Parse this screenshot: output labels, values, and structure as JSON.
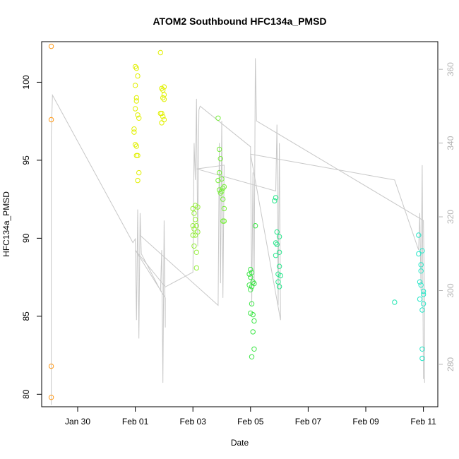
{
  "chart_data": {
    "type": "scatter",
    "title": "ATOM2 Southbound HFC134a_PMSD",
    "xlabel": "Date",
    "ylabel": "HFC134a_PMSD",
    "x_ticks": [
      "Jan 30",
      "Feb 01",
      "Feb 03",
      "Feb 05",
      "Feb 07",
      "Feb 09",
      "Feb 11"
    ],
    "y_ticks": [
      80,
      85,
      90,
      95,
      100
    ],
    "y2_ticks": [
      280,
      300,
      320,
      340,
      360
    ],
    "xlim": [
      "2017-01-28T18:00",
      "2017-02-11T12:00"
    ],
    "ylim": [
      79.2,
      102.6
    ],
    "y2lim": [
      268.5,
      367.5
    ],
    "colors": {
      "line": "#c8c8c8",
      "right_axis": "#b4b4b4"
    },
    "scatter": [
      {
        "x": "2017-01-29T02:00",
        "y": 102.3,
        "color": "#ff9a1a"
      },
      {
        "x": "2017-01-29T02:00",
        "y": 97.6,
        "color": "#ff9a1a"
      },
      {
        "x": "2017-01-29T02:00",
        "y": 81.8,
        "color": "#ff9a1a"
      },
      {
        "x": "2017-01-29T02:00",
        "y": 79.8,
        "color": "#ff9a1a"
      },
      {
        "x": "2017-02-01T00:00",
        "y": 101.0,
        "color": "#e1f000"
      },
      {
        "x": "2017-02-01T01:00",
        "y": 100.9,
        "color": "#e1f000"
      },
      {
        "x": "2017-02-01T02:00",
        "y": 100.4,
        "color": "#e1f000"
      },
      {
        "x": "2017-02-01T00:00",
        "y": 99.8,
        "color": "#e1f000"
      },
      {
        "x": "2017-02-01T01:00",
        "y": 99.0,
        "color": "#e1f000"
      },
      {
        "x": "2017-02-01T01:00",
        "y": 98.8,
        "color": "#e1f000"
      },
      {
        "x": "2017-02-01T00:00",
        "y": 98.3,
        "color": "#e1f000"
      },
      {
        "x": "2017-02-01T02:00",
        "y": 97.9,
        "color": "#e1f000"
      },
      {
        "x": "2017-02-01T03:00",
        "y": 97.7,
        "color": "#e1f000"
      },
      {
        "x": "2017-01-31T23:00",
        "y": 97.0,
        "color": "#e1f000"
      },
      {
        "x": "2017-01-31T23:00",
        "y": 96.8,
        "color": "#e1f000"
      },
      {
        "x": "2017-02-01T00:00",
        "y": 96.0,
        "color": "#e1f000"
      },
      {
        "x": "2017-02-01T01:00",
        "y": 95.9,
        "color": "#e1f000"
      },
      {
        "x": "2017-02-01T01:00",
        "y": 95.3,
        "color": "#e1f000"
      },
      {
        "x": "2017-02-01T02:00",
        "y": 95.3,
        "color": "#e1f000"
      },
      {
        "x": "2017-02-01T03:00",
        "y": 94.2,
        "color": "#e1f000"
      },
      {
        "x": "2017-02-01T02:00",
        "y": 93.7,
        "color": "#e1f000"
      },
      {
        "x": "2017-02-01T21:00",
        "y": 101.9,
        "color": "#e1f000"
      },
      {
        "x": "2017-02-02T00:00",
        "y": 99.7,
        "color": "#e1f000"
      },
      {
        "x": "2017-02-01T22:00",
        "y": 99.6,
        "color": "#e1f000"
      },
      {
        "x": "2017-02-01T23:00",
        "y": 99.5,
        "color": "#e1f000"
      },
      {
        "x": "2017-02-02T00:00",
        "y": 99.2,
        "color": "#e1f000"
      },
      {
        "x": "2017-02-01T23:00",
        "y": 99.0,
        "color": "#e1f000"
      },
      {
        "x": "2017-02-02T00:00",
        "y": 98.9,
        "color": "#e1f000"
      },
      {
        "x": "2017-02-01T21:00",
        "y": 98.0,
        "color": "#e1f000"
      },
      {
        "x": "2017-02-01T22:00",
        "y": 98.0,
        "color": "#e1f000"
      },
      {
        "x": "2017-02-01T23:00",
        "y": 97.8,
        "color": "#e1f000"
      },
      {
        "x": "2017-02-02T00:00",
        "y": 97.6,
        "color": "#e1f000"
      },
      {
        "x": "2017-02-01T22:00",
        "y": 97.4,
        "color": "#e1f000"
      },
      {
        "x": "2017-02-03T02:00",
        "y": 92.1,
        "color": "#96ee3c"
      },
      {
        "x": "2017-02-03T04:00",
        "y": 92.0,
        "color": "#96ee3c"
      },
      {
        "x": "2017-02-03T00:00",
        "y": 91.9,
        "color": "#96ee3c"
      },
      {
        "x": "2017-02-03T01:00",
        "y": 91.6,
        "color": "#96ee3c"
      },
      {
        "x": "2017-02-03T02:00",
        "y": 91.2,
        "color": "#96ee3c"
      },
      {
        "x": "2017-02-03T00:00",
        "y": 90.8,
        "color": "#96ee3c"
      },
      {
        "x": "2017-02-03T03:00",
        "y": 90.8,
        "color": "#96ee3c"
      },
      {
        "x": "2017-02-03T01:00",
        "y": 90.6,
        "color": "#96ee3c"
      },
      {
        "x": "2017-02-03T04:00",
        "y": 90.4,
        "color": "#96ee3c"
      },
      {
        "x": "2017-02-03T02:00",
        "y": 90.2,
        "color": "#96ee3c"
      },
      {
        "x": "2017-02-03T00:00",
        "y": 90.2,
        "color": "#96ee3c"
      },
      {
        "x": "2017-02-03T01:00",
        "y": 89.5,
        "color": "#96ee3c"
      },
      {
        "x": "2017-02-03T03:00",
        "y": 89.1,
        "color": "#96ee3c"
      },
      {
        "x": "2017-02-03T03:00",
        "y": 88.1,
        "color": "#96ee3c"
      },
      {
        "x": "2017-02-03T21:00",
        "y": 97.7,
        "color": "#78ee3c"
      },
      {
        "x": "2017-02-03T22:00",
        "y": 95.7,
        "color": "#78ee3c"
      },
      {
        "x": "2017-02-03T23:00",
        "y": 95.1,
        "color": "#78ee3c"
      },
      {
        "x": "2017-02-03T22:00",
        "y": 94.2,
        "color": "#78ee3c"
      },
      {
        "x": "2017-02-04T00:00",
        "y": 93.8,
        "color": "#78ee3c"
      },
      {
        "x": "2017-02-03T21:00",
        "y": 93.7,
        "color": "#78ee3c"
      },
      {
        "x": "2017-02-04T02:00",
        "y": 93.3,
        "color": "#78ee3c"
      },
      {
        "x": "2017-02-04T01:00",
        "y": 93.2,
        "color": "#78ee3c"
      },
      {
        "x": "2017-02-03T22:00",
        "y": 93.1,
        "color": "#78ee3c"
      },
      {
        "x": "2017-02-04T00:00",
        "y": 93.0,
        "color": "#78ee3c"
      },
      {
        "x": "2017-02-03T23:00",
        "y": 92.9,
        "color": "#78ee3c"
      },
      {
        "x": "2017-02-04T01:00",
        "y": 92.5,
        "color": "#78ee3c"
      },
      {
        "x": "2017-02-04T02:00",
        "y": 91.9,
        "color": "#78ee3c"
      },
      {
        "x": "2017-02-04T01:00",
        "y": 91.1,
        "color": "#78ee3c"
      },
      {
        "x": "2017-02-04T02:00",
        "y": 91.1,
        "color": "#78ee3c"
      },
      {
        "x": "2017-02-05T04:00",
        "y": 90.8,
        "color": "#3ce646"
      },
      {
        "x": "2017-02-05T00:00",
        "y": 88.0,
        "color": "#3ce646"
      },
      {
        "x": "2017-02-04T23:00",
        "y": 87.7,
        "color": "#3ce646"
      },
      {
        "x": "2017-02-05T01:00",
        "y": 87.8,
        "color": "#3ce646"
      },
      {
        "x": "2017-02-05T00:00",
        "y": 87.5,
        "color": "#3ce646"
      },
      {
        "x": "2017-02-05T02:00",
        "y": 87.2,
        "color": "#3ce646"
      },
      {
        "x": "2017-02-04T23:00",
        "y": 87.0,
        "color": "#3ce646"
      },
      {
        "x": "2017-02-05T03:00",
        "y": 87.1,
        "color": "#3ce646"
      },
      {
        "x": "2017-02-05T01:00",
        "y": 86.9,
        "color": "#3ce646"
      },
      {
        "x": "2017-02-05T00:00",
        "y": 86.7,
        "color": "#3ce646"
      },
      {
        "x": "2017-02-05T01:00",
        "y": 85.8,
        "color": "#3ce646"
      },
      {
        "x": "2017-02-05T00:00",
        "y": 85.2,
        "color": "#3ce646"
      },
      {
        "x": "2017-02-05T02:00",
        "y": 85.1,
        "color": "#3ce646"
      },
      {
        "x": "2017-02-05T03:00",
        "y": 84.7,
        "color": "#3ce646"
      },
      {
        "x": "2017-02-05T02:00",
        "y": 84.0,
        "color": "#3ce646"
      },
      {
        "x": "2017-02-05T03:00",
        "y": 82.9,
        "color": "#3ce646"
      },
      {
        "x": "2017-02-05T01:00",
        "y": 82.4,
        "color": "#3ce646"
      },
      {
        "x": "2017-02-05T21:00",
        "y": 92.6,
        "color": "#28e68c"
      },
      {
        "x": "2017-02-05T20:00",
        "y": 92.4,
        "color": "#28e68c"
      },
      {
        "x": "2017-02-05T22:00",
        "y": 90.4,
        "color": "#28e68c"
      },
      {
        "x": "2017-02-06T00:00",
        "y": 90.1,
        "color": "#28e68c"
      },
      {
        "x": "2017-02-05T21:00",
        "y": 89.7,
        "color": "#28e68c"
      },
      {
        "x": "2017-02-05T22:00",
        "y": 89.6,
        "color": "#28e68c"
      },
      {
        "x": "2017-02-06T00:00",
        "y": 89.1,
        "color": "#28e68c"
      },
      {
        "x": "2017-02-05T21:00",
        "y": 88.9,
        "color": "#28e68c"
      },
      {
        "x": "2017-02-06T00:00",
        "y": 88.2,
        "color": "#28e68c"
      },
      {
        "x": "2017-02-05T23:00",
        "y": 87.7,
        "color": "#28e68c"
      },
      {
        "x": "2017-02-06T01:00",
        "y": 87.6,
        "color": "#28e68c"
      },
      {
        "x": "2017-02-05T23:00",
        "y": 87.2,
        "color": "#28e68c"
      },
      {
        "x": "2017-02-06T00:00",
        "y": 86.9,
        "color": "#28e68c"
      },
      {
        "x": "2017-02-10T00:00",
        "y": 85.9,
        "color": "#28e6b4"
      },
      {
        "x": "2017-02-10T20:00",
        "y": 90.2,
        "color": "#28e6c8"
      },
      {
        "x": "2017-02-10T23:00",
        "y": 89.2,
        "color": "#28e6c8"
      },
      {
        "x": "2017-02-10T20:00",
        "y": 89.0,
        "color": "#28e6c8"
      },
      {
        "x": "2017-02-10T22:00",
        "y": 88.3,
        "color": "#28e6c8"
      },
      {
        "x": "2017-02-10T22:00",
        "y": 87.9,
        "color": "#28e6c8"
      },
      {
        "x": "2017-02-10T21:00",
        "y": 87.2,
        "color": "#28e6c8"
      },
      {
        "x": "2017-02-10T22:00",
        "y": 87.0,
        "color": "#28e6c8"
      },
      {
        "x": "2017-02-11T00:00",
        "y": 86.6,
        "color": "#28e6c8"
      },
      {
        "x": "2017-02-11T00:00",
        "y": 86.4,
        "color": "#28e6c8"
      },
      {
        "x": "2017-02-10T21:00",
        "y": 86.1,
        "color": "#28e6c8"
      },
      {
        "x": "2017-02-11T00:00",
        "y": 85.8,
        "color": "#28e6c8"
      },
      {
        "x": "2017-02-10T23:00",
        "y": 85.4,
        "color": "#28e6c8"
      },
      {
        "x": "2017-02-10T23:00",
        "y": 82.9,
        "color": "#28e6c8"
      },
      {
        "x": "2017-02-10T23:00",
        "y": 82.3,
        "color": "#28e6c8"
      }
    ],
    "line": [
      {
        "x": "2017-01-29T02:00",
        "y": 269
      },
      {
        "x": "2017-01-29T02:00",
        "y": 342
      },
      {
        "x": "2017-01-29T03:00",
        "y": 353
      },
      {
        "x": "2017-01-31T22:00",
        "y": 313
      },
      {
        "x": "2017-02-01T00:00",
        "y": 314
      },
      {
        "x": "2017-02-01T01:00",
        "y": 292
      },
      {
        "x": "2017-02-01T02:00",
        "y": 322
      },
      {
        "x": "2017-02-01T03:00",
        "y": 287
      },
      {
        "x": "2017-02-01T04:00",
        "y": 321
      },
      {
        "x": "2017-02-01T05:00",
        "y": 310
      },
      {
        "x": "2017-02-01T21:00",
        "y": 300
      },
      {
        "x": "2017-02-01T22:00",
        "y": 311
      },
      {
        "x": "2017-02-01T23:00",
        "y": 275
      },
      {
        "x": "2017-02-02T00:00",
        "y": 319
      },
      {
        "x": "2017-02-02T01:00",
        "y": 290
      },
      {
        "x": "2017-02-02T01:00",
        "y": 298
      },
      {
        "x": "2017-02-01T00:00",
        "y": 311
      },
      {
        "x": "2017-02-02T01:00",
        "y": 301
      },
      {
        "x": "2017-02-03T00:00",
        "y": 305
      },
      {
        "x": "2017-02-03T01:00",
        "y": 340
      },
      {
        "x": "2017-02-03T02:00",
        "y": 330
      },
      {
        "x": "2017-02-03T03:00",
        "y": 352
      },
      {
        "x": "2017-02-03T04:00",
        "y": 312
      },
      {
        "x": "2017-02-03T05:00",
        "y": 349
      },
      {
        "x": "2017-02-03T06:00",
        "y": 350
      },
      {
        "x": "2017-02-05T00:00",
        "y": 339
      },
      {
        "x": "2017-02-05T01:00",
        "y": 296
      },
      {
        "x": "2017-02-05T02:00",
        "y": 332
      },
      {
        "x": "2017-02-05T03:00",
        "y": 301
      },
      {
        "x": "2017-02-05T04:00",
        "y": 363
      },
      {
        "x": "2017-02-05T05:00",
        "y": 346
      },
      {
        "x": "2017-02-11T00:00",
        "y": 319
      },
      {
        "x": "2017-02-11T01:00",
        "y": 298
      },
      {
        "x": "2017-02-11T01:00",
        "y": 275
      }
    ],
    "line_extra": [
      {
        "x": "2017-02-01T04:00",
        "y": 315
      },
      {
        "x": "2017-02-03T21:00",
        "y": 296
      },
      {
        "x": "2017-02-03T22:00",
        "y": 340
      },
      {
        "x": "2017-02-03T23:00",
        "y": 302
      },
      {
        "x": "2017-02-04T00:00",
        "y": 346
      },
      {
        "x": "2017-02-04T01:00",
        "y": 298
      },
      {
        "x": "2017-02-04T02:00",
        "y": 334
      },
      {
        "x": "2017-02-03T03:00",
        "y": 333
      },
      {
        "x": "2017-02-05T21:00",
        "y": 327
      },
      {
        "x": "2017-02-05T22:00",
        "y": 345
      },
      {
        "x": "2017-02-05T23:00",
        "y": 296
      },
      {
        "x": "2017-02-06T00:00",
        "y": 340
      },
      {
        "x": "2017-02-06T01:00",
        "y": 292
      },
      {
        "x": "2017-02-05T00:00",
        "y": 337
      },
      {
        "x": "2017-02-10T00:00",
        "y": 330
      },
      {
        "x": "2017-02-10T20:00",
        "y": 311
      },
      {
        "x": "2017-02-10T21:00",
        "y": 321
      },
      {
        "x": "2017-02-10T22:00",
        "y": 300
      },
      {
        "x": "2017-02-10T23:00",
        "y": 334
      },
      {
        "x": "2017-02-11T00:00",
        "y": 276
      }
    ]
  }
}
